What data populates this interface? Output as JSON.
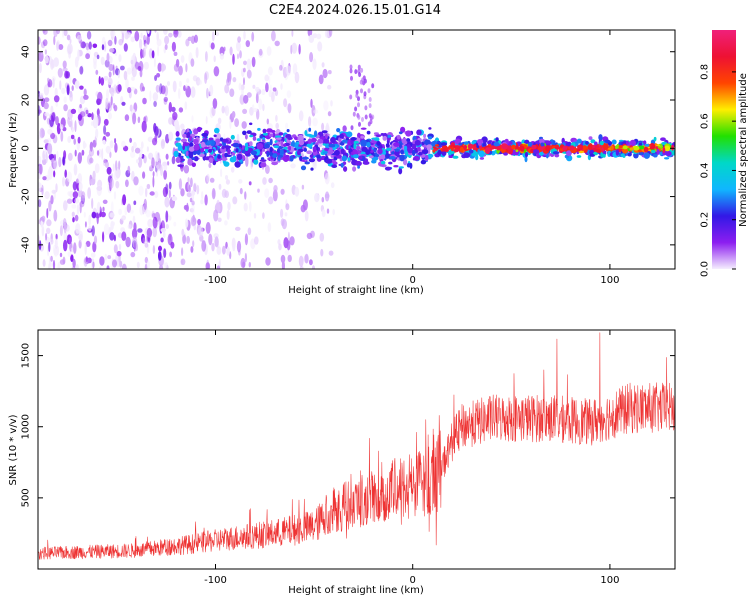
{
  "title": "C2E4.2024.026.15.01.G14",
  "chart_data": [
    {
      "type": "heatmap",
      "name": "spectrogram",
      "xlabel": "Height of straight line (km)",
      "ylabel": "Frequency (Hz)",
      "xlim": [
        -190,
        133
      ],
      "ylim": [
        -50,
        49
      ],
      "xticks": [
        -100,
        0,
        100
      ],
      "yticks": [
        -40,
        -20,
        0,
        20,
        40
      ],
      "colorbar": {
        "label": "Normalized spectral amplitude",
        "range": [
          0,
          0.97
        ],
        "ticks": [
          0.0,
          0.2,
          0.4,
          0.6,
          0.8
        ],
        "tick_labels": [
          "0.0",
          "0.2",
          "0.4",
          "0.6",
          "0.8"
        ],
        "colormap": [
          "#f5eefe",
          "#8c1ef0",
          "#3218e6",
          "#10b6ff",
          "#00d8c8",
          "#22e000",
          "#ffee00",
          "#ff4400",
          "#ee1133",
          "#f0207a"
        ]
      },
      "signal_band_hz": [
        -8,
        8
      ],
      "strong_line_from_km": 10,
      "noise_cutoff_km": -45
    },
    {
      "type": "line",
      "name": "snr",
      "color": "#ee3333",
      "xlabel": "Height of straight line (km)",
      "ylabel": "SNR (10 * v/v)",
      "xlim": [
        -190,
        133
      ],
      "ylim": [
        0,
        1680
      ],
      "xticks": [
        -100,
        0,
        100
      ],
      "yticks": [
        500,
        1000,
        1500
      ],
      "trend": [
        {
          "x": -190,
          "y": 110
        },
        {
          "x": -140,
          "y": 130
        },
        {
          "x": -115,
          "y": 170
        },
        {
          "x": -90,
          "y": 220
        },
        {
          "x": -70,
          "y": 250
        },
        {
          "x": -50,
          "y": 300
        },
        {
          "x": -40,
          "y": 420
        },
        {
          "x": -25,
          "y": 480
        },
        {
          "x": -10,
          "y": 560
        },
        {
          "x": 0,
          "y": 600
        },
        {
          "x": 10,
          "y": 620
        },
        {
          "x": 15,
          "y": 720
        },
        {
          "x": 20,
          "y": 900
        },
        {
          "x": 25,
          "y": 1000
        },
        {
          "x": 40,
          "y": 1060
        },
        {
          "x": 70,
          "y": 1060
        },
        {
          "x": 90,
          "y": 1030
        },
        {
          "x": 110,
          "y": 1130
        },
        {
          "x": 133,
          "y": 1130
        }
      ]
    }
  ]
}
